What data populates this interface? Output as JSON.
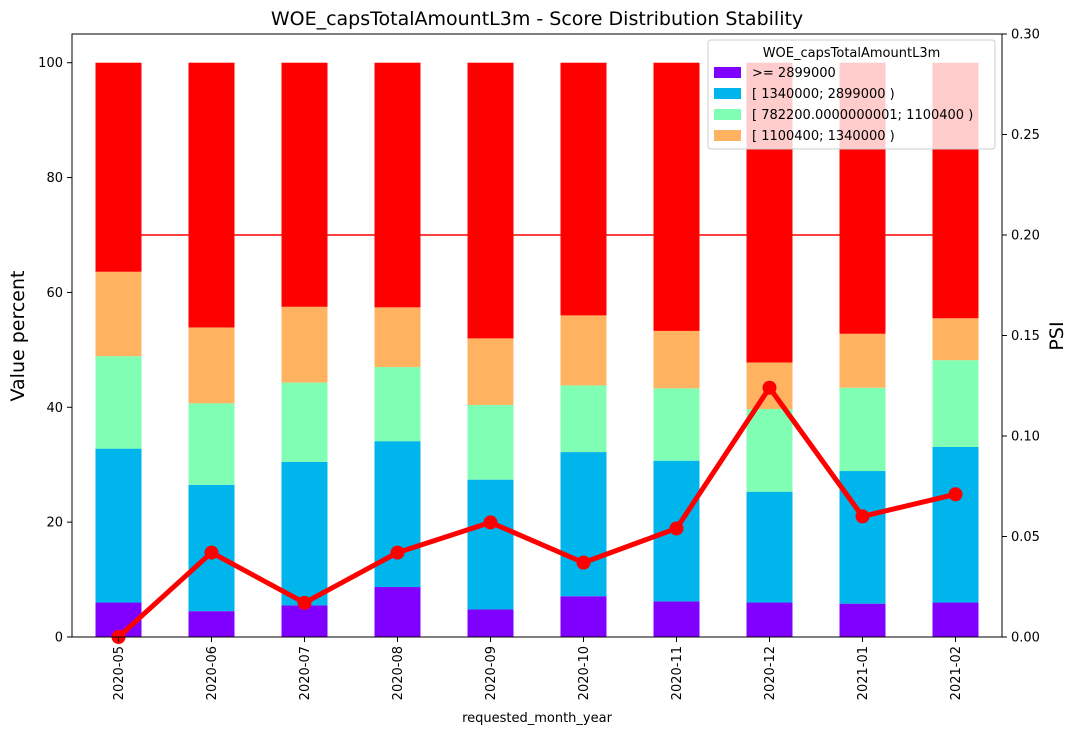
{
  "chart_data": {
    "type": "bar",
    "stacked": true,
    "title": "WOE_capsTotalAmountL3m  - Score Distribution Stability",
    "xlabel": "requested_month_year",
    "ylabel": "Value percent",
    "y2label": "PSI",
    "categories": [
      "2020-05",
      "2020-06",
      "2020-07",
      "2020-08",
      "2020-09",
      "2020-10",
      "2020-11",
      "2020-12",
      "2021-01",
      "2021-02"
    ],
    "ylim": [
      0,
      105
    ],
    "y_ticks": [
      0,
      20,
      40,
      60,
      80,
      100
    ],
    "y2lim": [
      0,
      0.3
    ],
    "y2_ticks": [
      "0.00",
      "0.05",
      "0.10",
      "0.15",
      "0.20",
      "0.25",
      "0.30"
    ],
    "series": [
      {
        "name": ">= 2899000",
        "color": "#8000ff",
        "values": [
          6.0,
          4.5,
          5.5,
          8.7,
          4.8,
          7.1,
          6.2,
          6.0,
          5.8,
          6.0
        ]
      },
      {
        "name": "[ 1340000; 2899000 )",
        "color": "#00b5eb",
        "values": [
          26.8,
          22.0,
          25.0,
          25.4,
          22.6,
          25.1,
          24.5,
          19.3,
          23.1,
          27.1
        ]
      },
      {
        "name": "[ 782200.0000000001; 1100400 )",
        "color": "#80ffb4",
        "values": [
          16.1,
          14.2,
          13.8,
          12.9,
          13.0,
          11.6,
          12.6,
          14.4,
          14.5,
          15.1
        ]
      },
      {
        "name": "[ 1100400; 1340000 )",
        "color": "#ffb360",
        "values": [
          14.7,
          13.2,
          13.2,
          10.4,
          11.6,
          12.2,
          10.0,
          8.1,
          9.4,
          7.3
        ]
      },
      {
        "name": "",
        "color": "#ff0000",
        "values": [
          36.4,
          46.1,
          42.5,
          42.6,
          48.0,
          44.0,
          46.7,
          52.2,
          47.2,
          44.5
        ]
      }
    ],
    "psi": {
      "color": "#ff0000",
      "values": [
        0.0,
        0.042,
        0.017,
        0.042,
        0.057,
        0.037,
        0.054,
        0.124,
        0.06,
        0.071
      ]
    },
    "threshold": {
      "value": 0.2,
      "color": "#ff0000"
    },
    "legend": {
      "title": "WOE_capsTotalAmountL3m",
      "placement": "top-right"
    },
    "grid": false
  }
}
